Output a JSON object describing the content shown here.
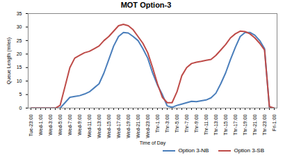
{
  "chart_data": {
    "type": "line",
    "title": "MOT Option-3",
    "x_label": "Time of Day",
    "y_label": "Queue Length (miles)",
    "categories": [
      "Tue-23:00",
      null,
      "Wed-1:00",
      null,
      "Wed-3:00",
      null,
      "Wed-5:00",
      null,
      "Wed-7:00",
      null,
      "Wed-9:00",
      null,
      "Wed-11:00",
      null,
      "Wed-13:00",
      null,
      "Wed-15:00",
      null,
      "Wed-17:00",
      null,
      "Wed-19:00",
      null,
      "Wed-21:00",
      null,
      "Wed-23:00",
      null,
      "Thr-1:00",
      null,
      "Thr-3:00",
      null,
      "Thr-5:00",
      null,
      "Thr-7:00",
      null,
      "Thr-9:00",
      null,
      "Thr-11:00",
      null,
      "Thr-13:00",
      null,
      "Thr-15:00",
      null,
      "Thr-17:00",
      null,
      "Thr-19:00",
      null,
      "Thr-21:00",
      null,
      "Thr-23:00",
      null,
      "Fri-1:00"
    ],
    "series": [
      {
        "name": "Option 3-NB",
        "color": "#4a7ebb",
        "values": [
          0,
          0,
          0,
          0,
          0,
          0,
          0,
          2,
          4,
          4.3,
          4.6,
          5.2,
          6,
          7.5,
          9,
          13,
          18,
          23,
          26.5,
          28,
          27.8,
          26.5,
          25,
          22,
          18.5,
          13,
          8.5,
          5,
          0.8,
          0.3,
          1,
          1.5,
          2,
          2.5,
          2.4,
          2.7,
          3,
          3.8,
          5.5,
          9,
          13,
          18,
          22.5,
          26.5,
          28,
          28,
          27,
          25,
          22,
          0.3,
          0
        ]
      },
      {
        "name": "Option 3-SB",
        "color": "#be4b48",
        "values": [
          0,
          0,
          0,
          0,
          0,
          0,
          1,
          8,
          15,
          18.5,
          19.5,
          20.5,
          21,
          22,
          23,
          25,
          26.5,
          28.5,
          30.5,
          31,
          30.5,
          29,
          26.5,
          24,
          20.5,
          15,
          9,
          4,
          2,
          2,
          6,
          12,
          15,
          16.5,
          17,
          17.3,
          17.7,
          18,
          19.5,
          21.5,
          23.5,
          26,
          27.5,
          28.5,
          28.3,
          27.5,
          26,
          24,
          21.5,
          0.5,
          0
        ]
      }
    ],
    "ylim": [
      0,
      35
    ],
    "yticks": [
      0,
      5,
      10,
      15,
      20,
      25,
      30,
      35
    ],
    "grid": false,
    "legend": "bottom"
  }
}
